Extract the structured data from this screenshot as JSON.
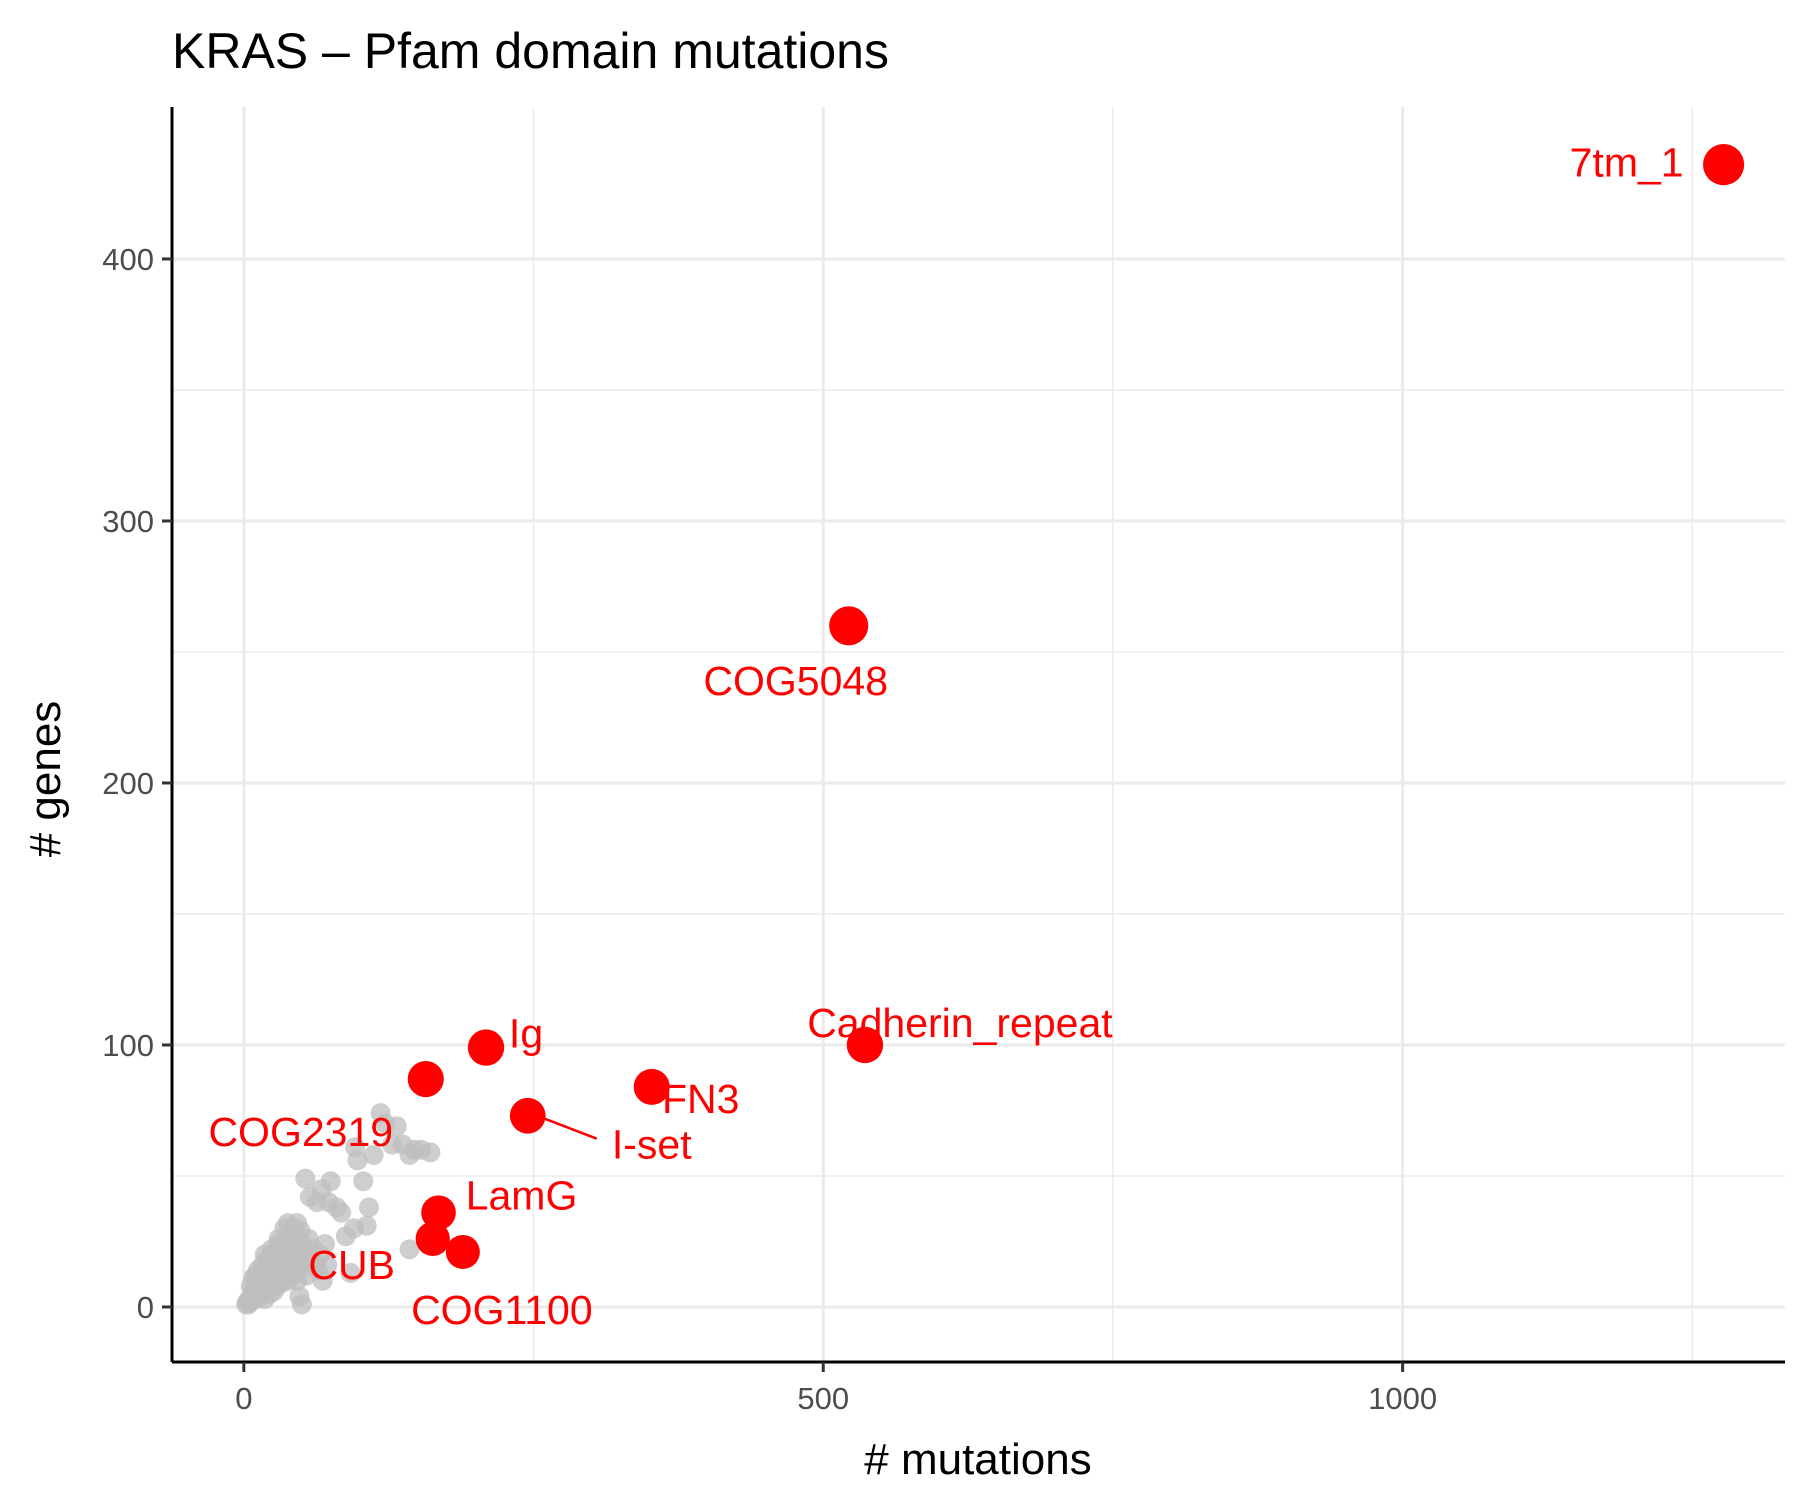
{
  "chart_data": {
    "type": "scatter",
    "title": "KRAS – Pfam domain mutations",
    "xlabel": "# mutations",
    "ylabel": "# genes",
    "xlim": [
      -62,
      1330
    ],
    "ylim": [
      -21,
      458
    ],
    "x_ticks": [
      0,
      500,
      1000
    ],
    "x_tick_labels": [
      "0",
      "500",
      "1000"
    ],
    "x_minor_ticks": [
      250,
      750,
      1250
    ],
    "y_ticks": [
      0,
      100,
      200,
      300,
      400
    ],
    "y_tick_labels": [
      "0",
      "100",
      "200",
      "300",
      "400"
    ],
    "y_minor_ticks": [
      50,
      150,
      250,
      350
    ],
    "grid": true,
    "legend": "none",
    "colors": {
      "highlight": "#ff0000",
      "background_points": "#bebebe",
      "grid": "#ebebeb",
      "axis": "#000000"
    },
    "highlighted": [
      {
        "name": "7tm_1",
        "x": 1277,
        "y": 436
      },
      {
        "name": "COG5048",
        "x": 522,
        "y": 260
      },
      {
        "name": "Cadherin_repeat",
        "x": 536,
        "y": 100
      },
      {
        "name": "Ig",
        "x": 209,
        "y": 99
      },
      {
        "name": "FN3",
        "x": 352,
        "y": 84
      },
      {
        "name": "I-set",
        "x": 245,
        "y": 73
      },
      {
        "name": "COG2319",
        "x": 157,
        "y": 87
      },
      {
        "name": "LamG",
        "x": 168,
        "y": 36
      },
      {
        "name": "CUB",
        "x": 163,
        "y": 26
      },
      {
        "name": "COG1100",
        "x": 189,
        "y": 21
      }
    ],
    "background_points": [
      [
        2,
        1
      ],
      [
        3,
        2
      ],
      [
        4,
        1
      ],
      [
        5,
        3
      ],
      [
        6,
        2
      ],
      [
        7,
        5
      ],
      [
        8,
        4
      ],
      [
        9,
        6
      ],
      [
        10,
        3
      ],
      [
        11,
        7
      ],
      [
        12,
        8
      ],
      [
        13,
        5
      ],
      [
        14,
        10
      ],
      [
        15,
        9
      ],
      [
        16,
        6
      ],
      [
        17,
        12
      ],
      [
        18,
        11
      ],
      [
        19,
        8
      ],
      [
        20,
        14
      ],
      [
        21,
        13
      ],
      [
        22,
        9
      ],
      [
        23,
        16
      ],
      [
        24,
        15
      ],
      [
        25,
        11
      ],
      [
        26,
        18
      ],
      [
        27,
        10
      ],
      [
        28,
        20
      ],
      [
        29,
        17
      ],
      [
        30,
        13
      ],
      [
        31,
        22
      ],
      [
        32,
        19
      ],
      [
        33,
        15
      ],
      [
        34,
        24
      ],
      [
        35,
        21
      ],
      [
        36,
        12
      ],
      [
        37,
        26
      ],
      [
        38,
        23
      ],
      [
        39,
        18
      ],
      [
        40,
        28
      ],
      [
        41,
        25
      ],
      [
        42,
        20
      ],
      [
        43,
        30
      ],
      [
        44,
        27
      ],
      [
        45,
        22
      ],
      [
        46,
        32
      ],
      [
        47,
        19
      ],
      [
        48,
        14
      ],
      [
        49,
        29
      ],
      [
        50,
        24
      ],
      [
        51,
        17
      ],
      [
        6,
        8
      ],
      [
        8,
        11
      ],
      [
        10,
        12
      ],
      [
        12,
        14
      ],
      [
        14,
        4
      ],
      [
        16,
        16
      ],
      [
        18,
        3
      ],
      [
        20,
        18
      ],
      [
        22,
        5
      ],
      [
        24,
        20
      ],
      [
        26,
        6
      ],
      [
        28,
        8
      ],
      [
        30,
        24
      ],
      [
        32,
        9
      ],
      [
        34,
        11
      ],
      [
        36,
        18
      ],
      [
        38,
        10
      ],
      [
        40,
        15
      ],
      [
        42,
        12
      ],
      [
        44,
        16
      ],
      [
        46,
        10
      ],
      [
        48,
        4
      ],
      [
        50,
        1
      ],
      [
        52,
        21
      ],
      [
        54,
        12
      ],
      [
        56,
        26
      ],
      [
        58,
        18
      ],
      [
        60,
        22
      ],
      [
        62,
        16
      ],
      [
        64,
        14
      ],
      [
        66,
        20
      ],
      [
        68,
        10
      ],
      [
        70,
        24
      ],
      [
        72,
        16
      ],
      [
        53,
        49
      ],
      [
        57,
        42
      ],
      [
        63,
        40
      ],
      [
        67,
        45
      ],
      [
        73,
        40
      ],
      [
        75,
        48
      ],
      [
        80,
        38
      ],
      [
        84,
        36
      ],
      [
        88,
        27
      ],
      [
        92,
        13
      ],
      [
        95,
        30
      ],
      [
        98,
        56
      ],
      [
        103,
        48
      ],
      [
        106,
        31
      ],
      [
        96,
        61
      ],
      [
        112,
        58
      ],
      [
        108,
        38
      ],
      [
        118,
        74
      ],
      [
        122,
        70
      ],
      [
        128,
        62
      ],
      [
        132,
        69
      ],
      [
        137,
        62
      ],
      [
        143,
        58
      ],
      [
        147,
        60
      ],
      [
        153,
        60
      ],
      [
        161,
        59
      ],
      [
        143,
        22
      ],
      [
        35,
        30
      ],
      [
        38,
        32
      ],
      [
        42,
        28
      ],
      [
        45,
        24
      ],
      [
        30,
        26
      ],
      [
        28,
        18
      ],
      [
        24,
        22
      ],
      [
        18,
        20
      ],
      [
        16,
        14
      ]
    ]
  }
}
